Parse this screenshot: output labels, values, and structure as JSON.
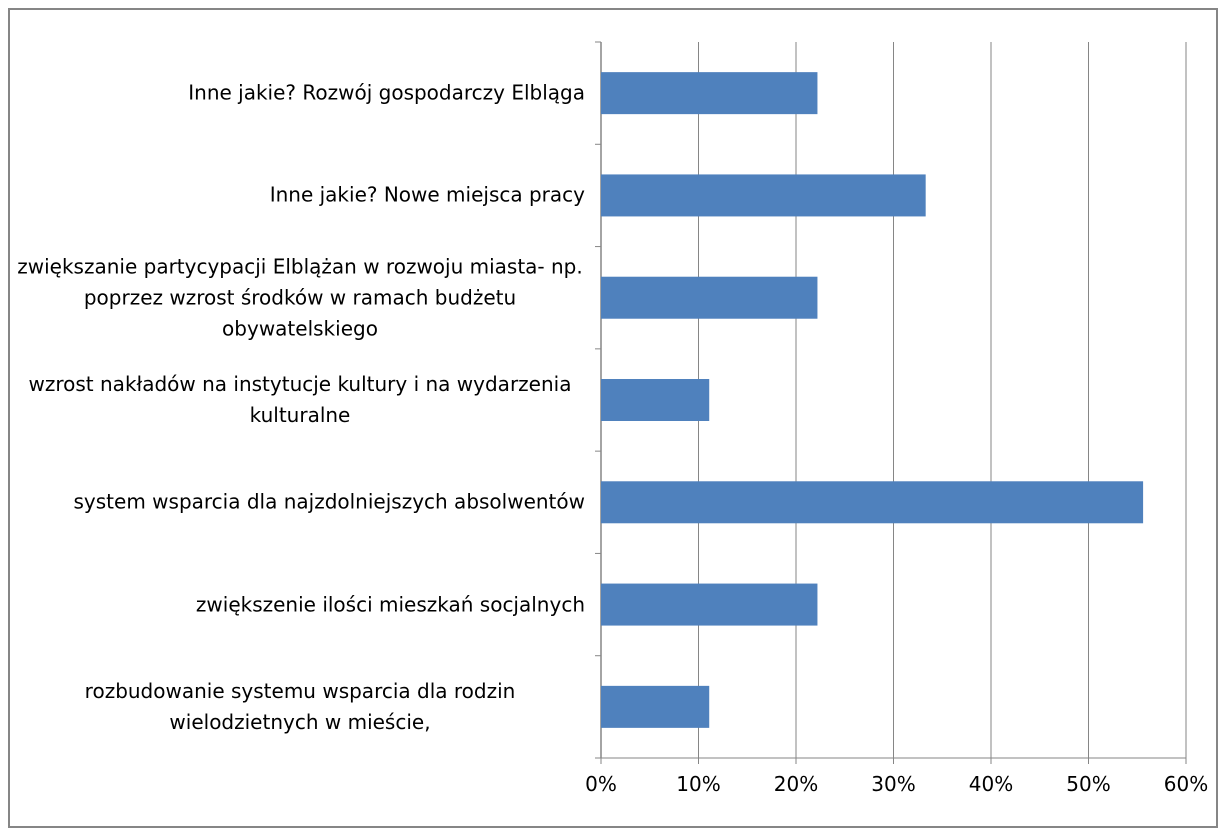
{
  "chart_data": {
    "type": "barh",
    "categories": [
      "Inne jakie? Rozwój gospodarczy Elbląga",
      "Inne jakie? Nowe miejsca pracy",
      "zwiększanie partycypacji Elblążan w rozwoju miasta- np. poprzez wzrost środków w ramach budżetu obywatelskiego",
      "wzrost nakładów na instytucje kultury i na wydarzenia kulturalne",
      "system wsparcia dla najzdolniejszych absolwentów",
      "zwiększenie ilości mieszkań socjalnych",
      "rozbudowanie systemu wsparcia dla rodzin wielodzietnych w mieście,"
    ],
    "values": [
      22.2,
      33.3,
      22.2,
      11.1,
      55.6,
      22.2,
      11.1
    ],
    "color": "#4f81bd",
    "xlim": [
      0,
      60
    ],
    "xticks": [
      {
        "value": 0,
        "label": "0%"
      },
      {
        "value": 10,
        "label": "10%"
      },
      {
        "value": 20,
        "label": "20%"
      },
      {
        "value": 30,
        "label": "30%"
      },
      {
        "value": 40,
        "label": "40%"
      },
      {
        "value": 50,
        "label": "50%"
      },
      {
        "value": 60,
        "label": "60%"
      }
    ],
    "grid": true
  }
}
